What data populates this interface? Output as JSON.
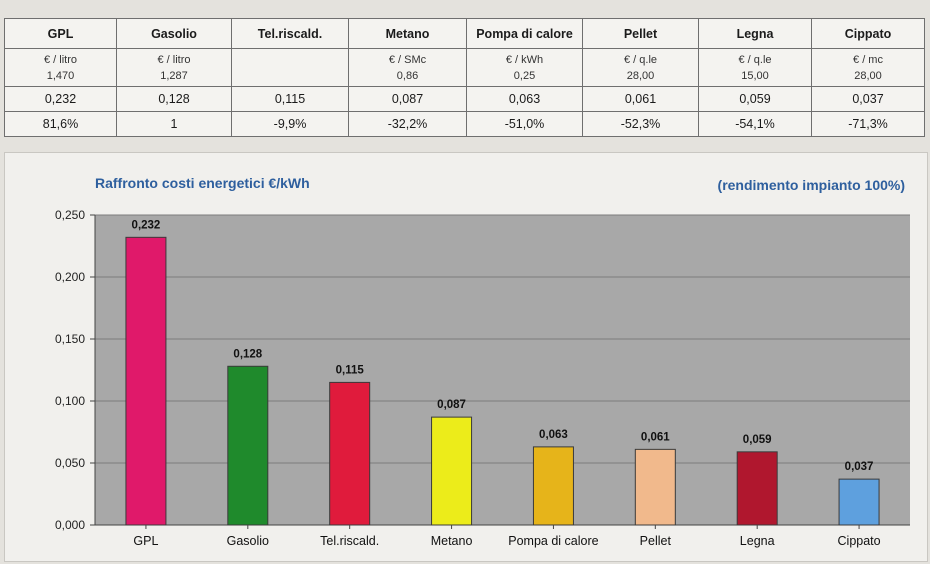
{
  "table": {
    "headers": [
      "GPL",
      "Gasolio",
      "Tel.riscald.",
      "Metano",
      "Pompa di calore",
      "Pellet",
      "Legna",
      "Cippato"
    ],
    "units": [
      "€ / litro",
      "€ / litro",
      "",
      "€ / SMc",
      "€ / kWh",
      "€ / q.le",
      "€ / q.le",
      "€ / mc"
    ],
    "unit_prices": [
      "1,470",
      "1,287",
      "",
      "0,86",
      "0,25",
      "28,00",
      "15,00",
      "28,00"
    ],
    "cost_per_kwh": [
      "0,232",
      "0,128",
      "0,115",
      "0,087",
      "0,063",
      "0,061",
      "0,059",
      "0,037"
    ],
    "percent_vs_gasolio": [
      "81,6%",
      "1",
      "-9,9%",
      "-32,2%",
      "-51,0%",
      "-52,3%",
      "-54,1%",
      "-71,3%"
    ]
  },
  "chart_data": {
    "type": "bar",
    "title": "Raffronto costi energetici  €/kWh",
    "subtitle": "(rendimento impianto 100%)",
    "categories": [
      "GPL",
      "Gasolio",
      "Tel.riscald.",
      "Metano",
      "Pompa di calore",
      "Pellet",
      "Legna",
      "Cippato"
    ],
    "values": [
      0.232,
      0.128,
      0.115,
      0.087,
      0.063,
      0.061,
      0.059,
      0.037
    ],
    "data_labels": [
      "0,232",
      "0,128",
      "0,115",
      "0,087",
      "0,063",
      "0,061",
      "0,059",
      "0,037"
    ],
    "colors": [
      "#e0196a",
      "#1f8a2c",
      "#e01b3c",
      "#ecec1a",
      "#e6b41a",
      "#f1b98c",
      "#b0172e",
      "#5ea0de"
    ],
    "ylim": [
      0,
      0.25
    ],
    "yticks": [
      0,
      0.05,
      0.1,
      0.15,
      0.2,
      0.25
    ],
    "ytick_labels": [
      "0,000",
      "0,050",
      "0,100",
      "0,150",
      "0,200",
      "0,250"
    ],
    "grid": true,
    "plot_background": "#a8a8a8",
    "xlabel": "",
    "ylabel": ""
  }
}
